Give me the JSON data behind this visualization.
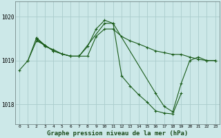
{
  "background_color": "#cce8e8",
  "line_color": "#1a5c1a",
  "grid_color": "#aacccc",
  "xlabel": "Graphe pression niveau de la mer (hPa)",
  "xlabel_fontsize": 6.5,
  "xlim": [
    -0.5,
    23.5
  ],
  "ylim": [
    1017.55,
    1020.35
  ],
  "yticks": [
    1018,
    1019,
    1020
  ],
  "xticks": [
    0,
    1,
    2,
    3,
    4,
    5,
    6,
    7,
    8,
    9,
    10,
    11,
    12,
    13,
    14,
    15,
    16,
    17,
    18,
    19,
    20,
    21,
    22,
    23
  ],
  "series": [
    {
      "x": [
        0,
        1,
        2,
        3,
        4,
        5,
        6,
        7,
        8,
        9,
        10,
        11,
        12,
        13,
        14,
        15,
        16,
        17,
        18,
        19,
        20,
        21,
        22,
        23
      ],
      "y": [
        1018.78,
        1019.0,
        1019.45,
        1019.35,
        1019.22,
        1019.15,
        1019.1,
        1019.1,
        1019.1,
        1019.55,
        1019.72,
        1019.72,
        1019.55,
        1019.45,
        1019.38,
        1019.3,
        1019.22,
        1019.18,
        1019.14,
        1019.14,
        1019.08,
        1019.03,
        1019.0,
        1019.0
      ]
    },
    {
      "x": [
        2,
        3,
        4,
        5,
        6,
        7,
        10,
        11,
        12,
        13,
        14,
        15,
        16,
        17,
        18,
        19
      ],
      "y": [
        1019.48,
        1019.35,
        1019.22,
        1019.15,
        1019.1,
        1019.1,
        1019.85,
        1019.85,
        1018.65,
        1018.42,
        1018.22,
        1018.05,
        1017.85,
        1017.8,
        1017.78,
        1018.25
      ]
    },
    {
      "x": [
        2,
        3,
        4,
        5,
        6,
        7,
        8,
        9,
        10,
        11,
        16,
        17,
        18,
        19,
        20,
        21,
        22,
        23
      ],
      "y": [
        1019.52,
        1019.32,
        1019.25,
        1019.15,
        1019.1,
        1019.1,
        1019.32,
        1019.72,
        1019.92,
        1019.85,
        1018.25,
        1017.95,
        1017.83,
        1018.48,
        1019.0,
        1019.08,
        1019.0,
        1019.0
      ]
    },
    {
      "x": [
        1,
        2,
        3,
        4
      ],
      "y": [
        1019.0,
        1019.52,
        1019.35,
        1019.22
      ]
    }
  ]
}
